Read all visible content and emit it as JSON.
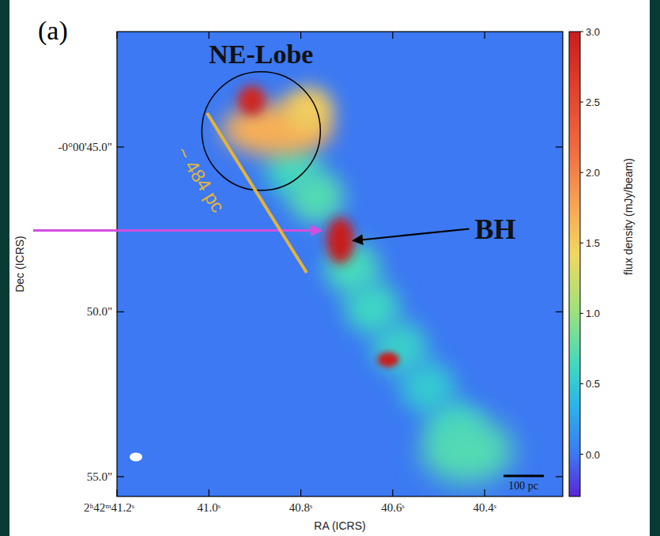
{
  "chart_data": {
    "type": "heatmap",
    "panel_label": "(a)",
    "x_label": "RA (ICRS)",
    "y_label": "Dec (ICRS)",
    "xlim": [
      41.2,
      40.23
    ],
    "xticks": [
      {
        "value": 41.2,
        "label": "2ʰ42ᵐ41.2ˢ"
      },
      {
        "value": 41.0,
        "label": "41.0ˢ"
      },
      {
        "value": 40.8,
        "label": "40.8ˢ"
      },
      {
        "value": 40.6,
        "label": "40.6ˢ"
      },
      {
        "value": 40.4,
        "label": "40.4ˢ"
      }
    ],
    "ylim": [
      41.5,
      55.6
    ],
    "yticks": [
      {
        "value": 45,
        "label": "-0°00'45.0\""
      },
      {
        "value": 50,
        "label": "50.0\""
      },
      {
        "value": 55,
        "label": "55.0\""
      }
    ],
    "background": 0.0,
    "sources": [
      {
        "ra": 40.817,
        "dec": 45.68,
        "flux": 0.6,
        "width": 1.8,
        "height": 1.6
      },
      {
        "ra": 40.766,
        "dec": 46.52,
        "flux": 0.7,
        "width": 1.8,
        "height": 1.6
      },
      {
        "ra": 40.688,
        "dec": 48.68,
        "flux": 0.65,
        "width": 1.8,
        "height": 1.6
      },
      {
        "ra": 40.645,
        "dec": 49.88,
        "flux": 0.6,
        "width": 1.8,
        "height": 1.6
      },
      {
        "ra": 40.584,
        "dec": 51.09,
        "flux": 0.55,
        "width": 1.8,
        "height": 1.6
      },
      {
        "ra": 40.524,
        "dec": 52.29,
        "flux": 0.5,
        "width": 1.8,
        "height": 1.6
      },
      {
        "ra": 40.464,
        "dec": 53.49,
        "flux": 0.55,
        "width": 1.8,
        "height": 1.6
      },
      {
        "ra": 40.438,
        "dec": 54.21,
        "flux": 0.7,
        "width": 3.0,
        "height": 2.0
      },
      {
        "ra": 40.852,
        "dec": 44.47,
        "flux": 1.7,
        "width": 3.6,
        "height": 1.6
      },
      {
        "ra": 40.783,
        "dec": 43.87,
        "flux": 1.5,
        "width": 1.6,
        "height": 1.4
      },
      {
        "ra": 40.907,
        "dec": 43.59,
        "flux": 2.9,
        "width": 0.9,
        "height": 0.9
      },
      {
        "ra": 40.714,
        "dec": 47.84,
        "flux": 3.0,
        "width": 0.9,
        "height": 1.4
      },
      {
        "ra": 40.61,
        "dec": 51.45,
        "flux": 3.0,
        "width": 0.7,
        "height": 0.45
      }
    ],
    "colorbar": {
      "label": "flux density (mJy/beam)",
      "range": [
        -0.3,
        3.0
      ],
      "ticks": [
        {
          "value": 0,
          "label": "0.0"
        },
        0.5,
        {
          "value": 1,
          "label": "1.0"
        },
        1.5,
        {
          "value": 2,
          "label": "2.0"
        },
        2.5,
        {
          "value": 3,
          "label": "3.0"
        }
      ]
    },
    "annotations": {
      "lobe": "NE-Lobe",
      "bh": "BH",
      "distance": "~ 484 pc",
      "scale_bar": "100 pc"
    }
  }
}
